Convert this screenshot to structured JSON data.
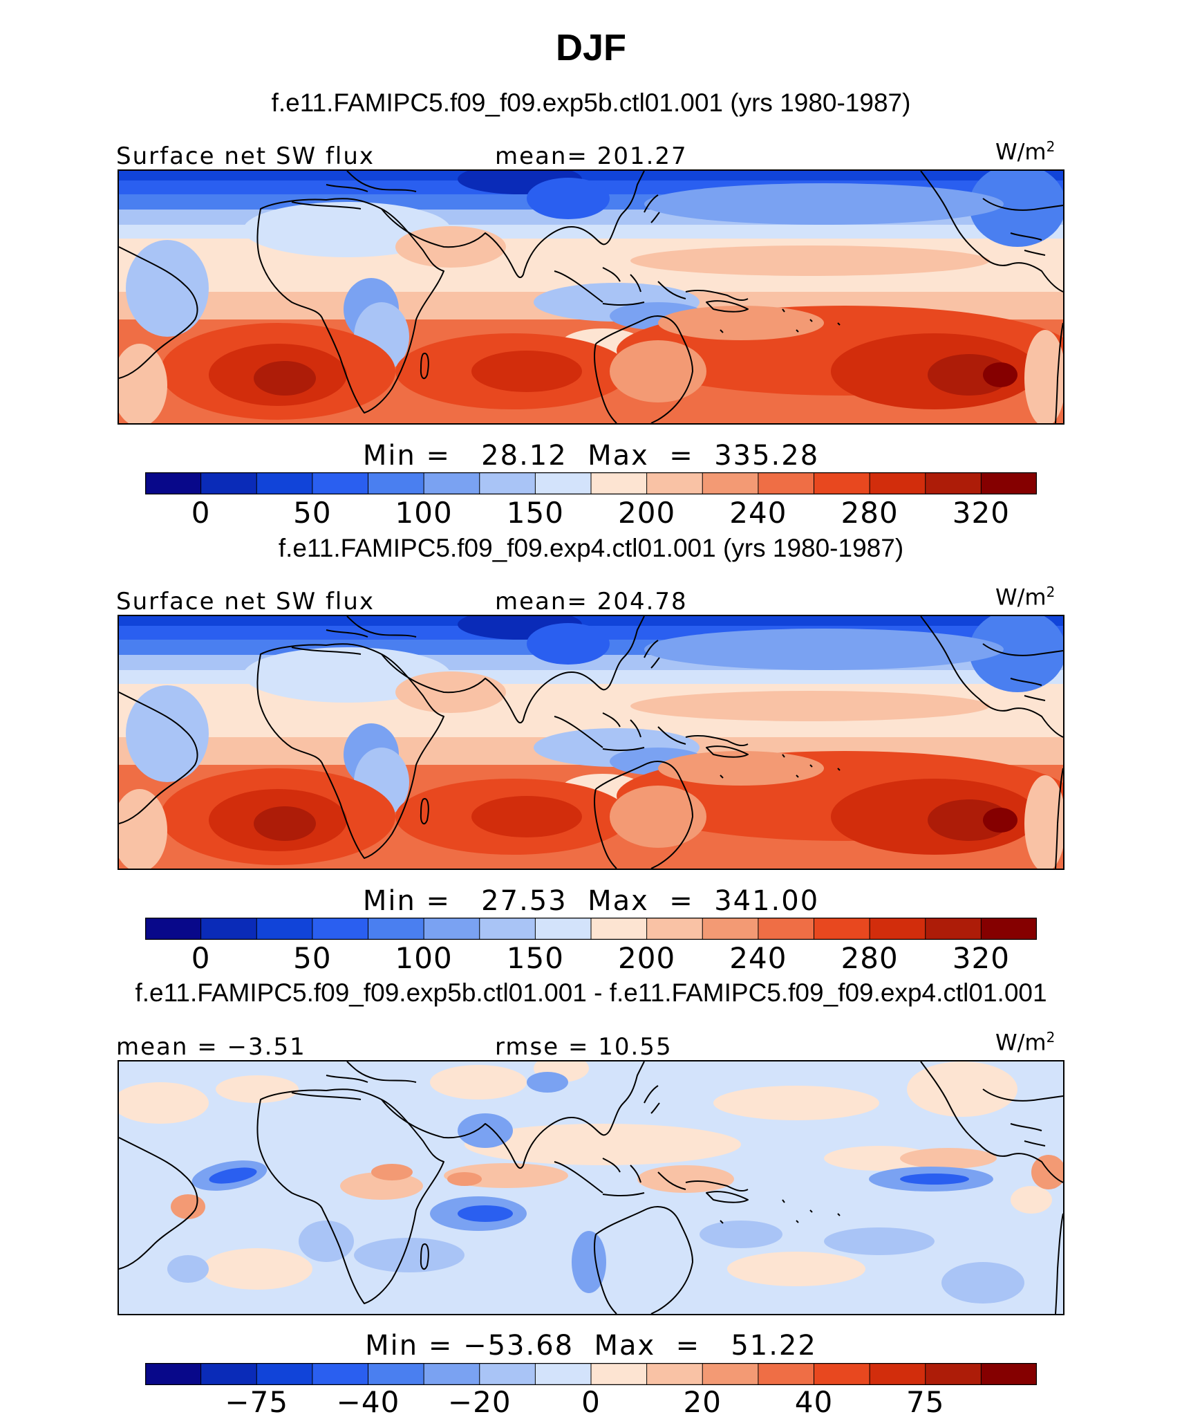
{
  "figure": {
    "title": "DJF"
  },
  "panels": [
    {
      "title": "f.e11.FAMIPC5.f09_f09.exp5b.ctl01.001 (yrs 1980-1987)",
      "left_label": "Surface net SW flux",
      "center_label": "mean= 201.27",
      "units": "W/m",
      "units_sup": "2",
      "minmax": "Min =   28.12  Max  =  335.28",
      "colorbar": {
        "colors": [
          "#08088a",
          "#0a2bb8",
          "#1144d9",
          "#2a5ff0",
          "#4a7ff0",
          "#7aa2f2",
          "#a9c4f6",
          "#d3e3fb",
          "#fde4d2",
          "#f9c2a5",
          "#f39a74",
          "#ef6e45",
          "#e8481f",
          "#d22d0c",
          "#ad1c08",
          "#850000"
        ],
        "tick_labels": [
          "0",
          "50",
          "100",
          "150",
          "200",
          "240",
          "280",
          "320"
        ],
        "tick_after_box": [
          1,
          3,
          5,
          7,
          9,
          11,
          13,
          15
        ]
      },
      "field": "sw"
    },
    {
      "title": "f.e11.FAMIPC5.f09_f09.exp4.ctl01.001 (yrs 1980-1987)",
      "left_label": "Surface net SW flux",
      "center_label": "mean= 204.78",
      "units": "W/m",
      "units_sup": "2",
      "minmax": "Min =   27.53  Max  =  341.00",
      "colorbar": {
        "colors": [
          "#08088a",
          "#0a2bb8",
          "#1144d9",
          "#2a5ff0",
          "#4a7ff0",
          "#7aa2f2",
          "#a9c4f6",
          "#d3e3fb",
          "#fde4d2",
          "#f9c2a5",
          "#f39a74",
          "#ef6e45",
          "#e8481f",
          "#d22d0c",
          "#ad1c08",
          "#850000"
        ],
        "tick_labels": [
          "0",
          "50",
          "100",
          "150",
          "200",
          "240",
          "280",
          "320"
        ],
        "tick_after_box": [
          1,
          3,
          5,
          7,
          9,
          11,
          13,
          15
        ]
      },
      "field": "sw"
    },
    {
      "title": "f.e11.FAMIPC5.f09_f09.exp5b.ctl01.001 - f.e11.FAMIPC5.f09_f09.exp4.ctl01.001",
      "left_label": "mean =  −3.51",
      "center_label": "rmse =   10.55",
      "units": "W/m",
      "units_sup": "2",
      "minmax": "Min = −53.68  Max  =   51.22",
      "colorbar": {
        "colors": [
          "#08088a",
          "#0a2bb8",
          "#1144d9",
          "#2a5ff0",
          "#4a7ff0",
          "#7aa2f2",
          "#a9c4f6",
          "#d3e3fb",
          "#fde4d2",
          "#f9c2a5",
          "#f39a74",
          "#ef6e45",
          "#e8481f",
          "#d22d0c",
          "#ad1c08",
          "#850000"
        ],
        "tick_labels": [
          "−75",
          "−40",
          "−20",
          "0",
          "20",
          "40",
          "75"
        ],
        "tick_after_box": [
          2,
          4,
          6,
          8,
          10,
          12,
          14
        ]
      },
      "field": "diff"
    }
  ]
}
